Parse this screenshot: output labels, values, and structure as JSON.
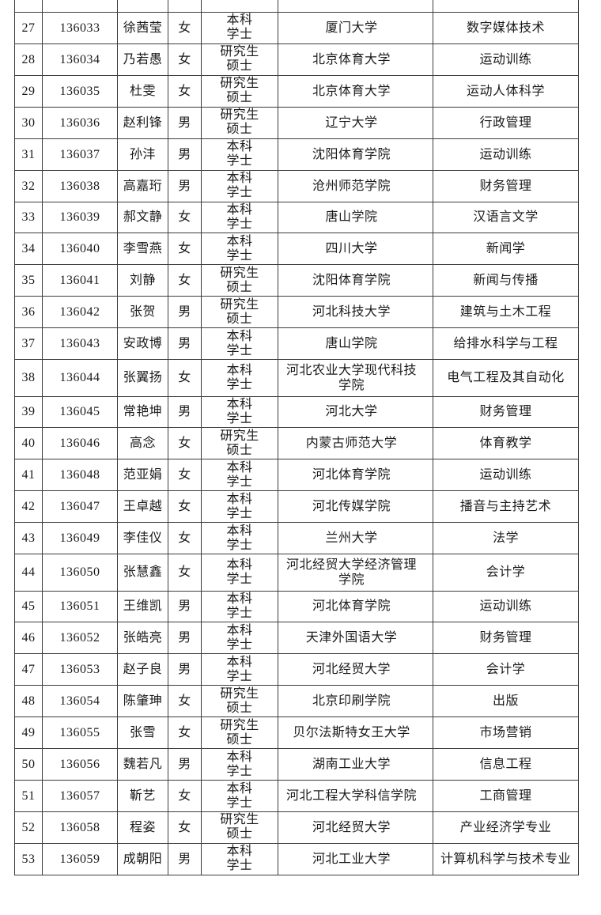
{
  "document": {
    "description_label": "candidate-roster-table"
  },
  "colors": {
    "border": "#3c3c3c",
    "text": "#1a1a1a",
    "background": "#ffffff"
  },
  "table": {
    "rows": [
      {
        "no": "27",
        "id": "136033",
        "name": "徐茜莹",
        "gender": "女",
        "edu1": "本科",
        "edu2": "学士",
        "university": "厦门大学",
        "major": "数字媒体技术"
      },
      {
        "no": "28",
        "id": "136034",
        "name": "乃若愚",
        "gender": "女",
        "edu1": "研究生",
        "edu2": "硕士",
        "university": "北京体育大学",
        "major": "运动训练"
      },
      {
        "no": "29",
        "id": "136035",
        "name": "杜雯",
        "gender": "女",
        "edu1": "研究生",
        "edu2": "硕士",
        "university": "北京体育大学",
        "major": "运动人体科学"
      },
      {
        "no": "30",
        "id": "136036",
        "name": "赵利锋",
        "gender": "男",
        "edu1": "研究生",
        "edu2": "硕士",
        "university": "辽宁大学",
        "major": "行政管理"
      },
      {
        "no": "31",
        "id": "136037",
        "name": "孙沣",
        "gender": "男",
        "edu1": "本科",
        "edu2": "学士",
        "university": "沈阳体育学院",
        "major": "运动训练"
      },
      {
        "no": "32",
        "id": "136038",
        "name": "高嘉珩",
        "gender": "男",
        "edu1": "本科",
        "edu2": "学士",
        "university": "沧州师范学院",
        "major": "财务管理"
      },
      {
        "no": "33",
        "id": "136039",
        "name": "郝文静",
        "gender": "女",
        "edu1": "本科",
        "edu2": "学士",
        "university": "唐山学院",
        "major": "汉语言文学"
      },
      {
        "no": "34",
        "id": "136040",
        "name": "李雪燕",
        "gender": "女",
        "edu1": "本科",
        "edu2": "学士",
        "university": "四川大学",
        "major": "新闻学"
      },
      {
        "no": "35",
        "id": "136041",
        "name": "刘静",
        "gender": "女",
        "edu1": "研究生",
        "edu2": "硕士",
        "university": "沈阳体育学院",
        "major": "新闻与传播"
      },
      {
        "no": "36",
        "id": "136042",
        "name": "张贺",
        "gender": "男",
        "edu1": "研究生",
        "edu2": "硕士",
        "university": "河北科技大学",
        "major": "建筑与土木工程"
      },
      {
        "no": "37",
        "id": "136043",
        "name": "安政博",
        "gender": "男",
        "edu1": "本科",
        "edu2": "学士",
        "university": "唐山学院",
        "major": "给排水科学与工程"
      },
      {
        "no": "38",
        "id": "136044",
        "name": "张翼扬",
        "gender": "女",
        "edu1": "本科",
        "edu2": "学士",
        "university": "河北农业大学现代科技学院",
        "major": "电气工程及其自动化"
      },
      {
        "no": "39",
        "id": "136045",
        "name": "常艳坤",
        "gender": "男",
        "edu1": "本科",
        "edu2": "学士",
        "university": "河北大学",
        "major": "财务管理"
      },
      {
        "no": "40",
        "id": "136046",
        "name": "高念",
        "gender": "女",
        "edu1": "研究生",
        "edu2": "硕士",
        "university": "内蒙古师范大学",
        "major": "体育教学"
      },
      {
        "no": "41",
        "id": "136048",
        "name": "范亚娟",
        "gender": "女",
        "edu1": "本科",
        "edu2": "学士",
        "university": "河北体育学院",
        "major": "运动训练"
      },
      {
        "no": "42",
        "id": "136047",
        "name": "王卓越",
        "gender": "女",
        "edu1": "本科",
        "edu2": "学士",
        "university": "河北传媒学院",
        "major": "播音与主持艺术"
      },
      {
        "no": "43",
        "id": "136049",
        "name": "李佳仪",
        "gender": "女",
        "edu1": "本科",
        "edu2": "学士",
        "university": "兰州大学",
        "major": "法学"
      },
      {
        "no": "44",
        "id": "136050",
        "name": "张慧鑫",
        "gender": "女",
        "edu1": "本科",
        "edu2": "学士",
        "university": "河北经贸大学经济管理学院",
        "major": "会计学"
      },
      {
        "no": "45",
        "id": "136051",
        "name": "王维凯",
        "gender": "男",
        "edu1": "本科",
        "edu2": "学士",
        "university": "河北体育学院",
        "major": "运动训练"
      },
      {
        "no": "46",
        "id": "136052",
        "name": "张皓亮",
        "gender": "男",
        "edu1": "本科",
        "edu2": "学士",
        "university": "天津外国语大学",
        "major": "财务管理"
      },
      {
        "no": "47",
        "id": "136053",
        "name": "赵子良",
        "gender": "男",
        "edu1": "本科",
        "edu2": "学士",
        "university": "河北经贸大学",
        "major": "会计学"
      },
      {
        "no": "48",
        "id": "136054",
        "name": "陈肇珅",
        "gender": "女",
        "edu1": "研究生",
        "edu2": "硕士",
        "university": "北京印刷学院",
        "major": "出版"
      },
      {
        "no": "49",
        "id": "136055",
        "name": "张雪",
        "gender": "女",
        "edu1": "研究生",
        "edu2": "硕士",
        "university": "贝尔法斯特女王大学",
        "major": "市场营销"
      },
      {
        "no": "50",
        "id": "136056",
        "name": "魏若凡",
        "gender": "男",
        "edu1": "本科",
        "edu2": "学士",
        "university": "湖南工业大学",
        "major": "信息工程"
      },
      {
        "no": "51",
        "id": "136057",
        "name": "靳艺",
        "gender": "女",
        "edu1": "本科",
        "edu2": "学士",
        "university": "河北工程大学科信学院",
        "major": "工商管理"
      },
      {
        "no": "52",
        "id": "136058",
        "name": "程姿",
        "gender": "女",
        "edu1": "研究生",
        "edu2": "硕士",
        "university": "河北经贸大学",
        "major": "产业经济学专业"
      },
      {
        "no": "53",
        "id": "136059",
        "name": "成朝阳",
        "gender": "男",
        "edu1": "本科",
        "edu2": "学士",
        "university": "河北工业大学",
        "major": "计算机科学与技术专业"
      }
    ]
  },
  "layout_hints": {
    "column_stub_positions": [
      18,
      53,
      148,
      212,
      254,
      351,
      547,
      731
    ]
  }
}
